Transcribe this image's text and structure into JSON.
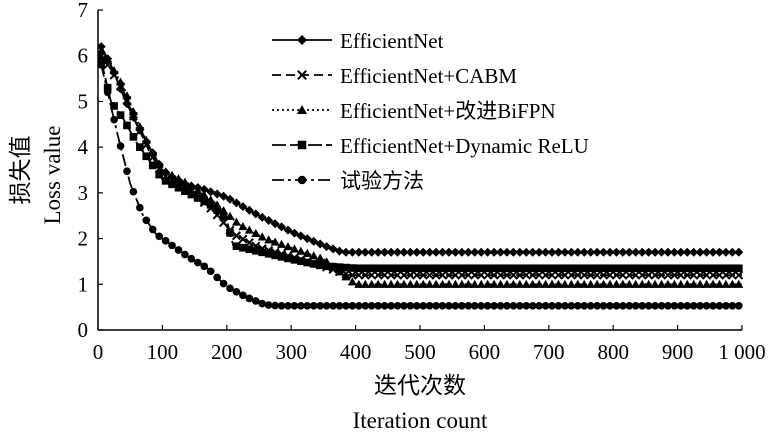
{
  "chart_data": {
    "type": "line",
    "ylabel_cn": "损失值",
    "ylabel_en": "Loss value",
    "xlabel_cn": "迭代次数",
    "xlabel_en": "Iteration count",
    "xlim": [
      0,
      1000
    ],
    "ylim": [
      0,
      7
    ],
    "x_ticks": [
      0,
      100,
      200,
      300,
      400,
      500,
      600,
      700,
      800,
      900,
      1000
    ],
    "x_tick_labels": [
      "0",
      "100",
      "200",
      "300",
      "400",
      "500",
      "600",
      "700",
      "800",
      "900",
      "1 000"
    ],
    "y_ticks": [
      0,
      1,
      2,
      3,
      4,
      5,
      6,
      7
    ],
    "y_tick_labels": [
      "0",
      "1",
      "2",
      "3",
      "4",
      "5",
      "6",
      "7"
    ],
    "grid": false,
    "legend_position": "top-right",
    "series": [
      {
        "name": "EfficientNet",
        "marker": "diamond",
        "dash": "solid",
        "points": [
          [
            5,
            6.2
          ],
          [
            20,
            5.8
          ],
          [
            40,
            5.1
          ],
          [
            60,
            4.5
          ],
          [
            80,
            4.0
          ],
          [
            100,
            3.5
          ],
          [
            130,
            3.2
          ],
          [
            160,
            3.1
          ],
          [
            200,
            2.9
          ],
          [
            250,
            2.5
          ],
          [
            300,
            2.15
          ],
          [
            350,
            1.85
          ],
          [
            380,
            1.7
          ],
          [
            1000,
            1.7
          ]
        ]
      },
      {
        "name": "EfficientNet+CABM",
        "marker": "x",
        "dash": "dashed",
        "points": [
          [
            5,
            6.0
          ],
          [
            20,
            5.7
          ],
          [
            40,
            5.2
          ],
          [
            60,
            4.5
          ],
          [
            80,
            3.9
          ],
          [
            100,
            3.4
          ],
          [
            140,
            3.1
          ],
          [
            180,
            2.6
          ],
          [
            210,
            2.1
          ],
          [
            250,
            1.8
          ],
          [
            300,
            1.6
          ],
          [
            350,
            1.4
          ],
          [
            390,
            1.2
          ],
          [
            1000,
            1.2
          ]
        ]
      },
      {
        "name": "EfficientNet+改进BiFPN",
        "marker": "triangle",
        "dash": "dotted",
        "points": [
          [
            5,
            6.1
          ],
          [
            20,
            5.8
          ],
          [
            40,
            5.3
          ],
          [
            60,
            4.6
          ],
          [
            80,
            4.0
          ],
          [
            100,
            3.5
          ],
          [
            140,
            3.2
          ],
          [
            180,
            2.8
          ],
          [
            220,
            2.3
          ],
          [
            260,
            2.0
          ],
          [
            300,
            1.8
          ],
          [
            350,
            1.55
          ],
          [
            400,
            1.0
          ],
          [
            1000,
            1.0
          ]
        ]
      },
      {
        "name": "EfficientNet+Dynamic ReLU",
        "marker": "square",
        "dash": "longdash",
        "points": [
          [
            5,
            5.9
          ],
          [
            20,
            5.0
          ],
          [
            40,
            4.6
          ],
          [
            60,
            4.1
          ],
          [
            80,
            3.7
          ],
          [
            100,
            3.3
          ],
          [
            140,
            3.0
          ],
          [
            180,
            2.7
          ],
          [
            200,
            2.4
          ],
          [
            210,
            1.85
          ],
          [
            240,
            1.75
          ],
          [
            270,
            1.65
          ],
          [
            300,
            1.55
          ],
          [
            350,
            1.4
          ],
          [
            400,
            1.35
          ],
          [
            1000,
            1.35
          ]
        ]
      },
      {
        "name": "试验方法",
        "marker": "circle",
        "dash": "dashdot",
        "points": [
          [
            5,
            5.8
          ],
          [
            15,
            5.2
          ],
          [
            30,
            4.3
          ],
          [
            50,
            3.2
          ],
          [
            70,
            2.5
          ],
          [
            90,
            2.1
          ],
          [
            110,
            1.9
          ],
          [
            140,
            1.6
          ],
          [
            170,
            1.35
          ],
          [
            200,
            0.95
          ],
          [
            230,
            0.72
          ],
          [
            260,
            0.55
          ],
          [
            280,
            0.53
          ],
          [
            1000,
            0.53
          ]
        ]
      }
    ]
  }
}
